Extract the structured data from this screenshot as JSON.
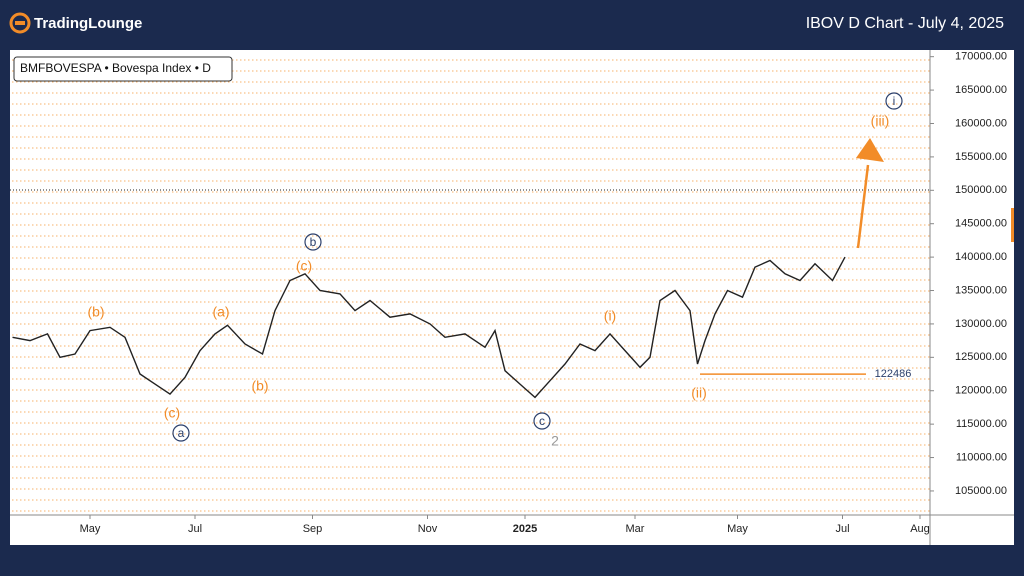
{
  "header": {
    "logo": "TradingLounge",
    "title": "IBOV D Chart - July 4, 2025"
  },
  "chart_data": {
    "type": "line",
    "legend_label": "BMFBOVESPA • Bovespa Index • D",
    "series": [
      {
        "name": "IBOV",
        "color": "#222222",
        "x": [
          1,
          8,
          15,
          20,
          26,
          32,
          40,
          46,
          52,
          58,
          64,
          70,
          76,
          82,
          87,
          94,
          101,
          106,
          112,
          118,
          124,
          132,
          138,
          144,
          152,
          160,
          168,
          174,
          182,
          190,
          194,
          198,
          204,
          210,
          216,
          222,
          228,
          234,
          240,
          246,
          252,
          256,
          260,
          266,
          272,
          275,
          278,
          282,
          287,
          293,
          298,
          304,
          310,
          316,
          322,
          329,
          334
        ],
        "values": [
          128000,
          127500,
          128500,
          125000,
          125500,
          129000,
          129500,
          128000,
          122500,
          121000,
          119500,
          122000,
          126000,
          128500,
          129800,
          127000,
          125500,
          132000,
          136500,
          137500,
          135000,
          134500,
          132000,
          133500,
          131000,
          131500,
          130000,
          128000,
          128500,
          126500,
          129000,
          123000,
          121000,
          119000,
          121500,
          124000,
          127000,
          126000,
          128500,
          126000,
          123500,
          125000,
          133500,
          135000,
          132000,
          124000,
          127500,
          131500,
          135000,
          134000,
          138500,
          139500,
          137500,
          136500,
          139000,
          136500,
          140000
        ]
      }
    ],
    "xlim": [
      0,
      368
    ],
    "xticks": [
      {
        "value": 32,
        "label": "May"
      },
      {
        "value": 74,
        "label": "Jul"
      },
      {
        "value": 121,
        "label": "Sep"
      },
      {
        "value": 167,
        "label": "Nov"
      },
      {
        "value": 206,
        "label": "2025"
      },
      {
        "value": 250,
        "label": "Mar"
      },
      {
        "value": 291,
        "label": "May"
      },
      {
        "value": 333,
        "label": "Jul"
      },
      {
        "value": 364,
        "label": "Aug"
      }
    ],
    "ylim": [
      101400,
      171000
    ],
    "yticks": [
      {
        "value": 105000,
        "label": "105000.00"
      },
      {
        "value": 110000,
        "label": "110000.00"
      },
      {
        "value": 115000,
        "label": "115000.00"
      },
      {
        "value": 120000,
        "label": "120000.00"
      },
      {
        "value": 125000,
        "label": "125000.00"
      },
      {
        "value": 130000,
        "label": "130000.00"
      },
      {
        "value": 135000,
        "label": "135000.00"
      },
      {
        "value": 140000,
        "label": "140000.00"
      },
      {
        "value": 145000,
        "label": "145000.00"
      },
      {
        "value": 150000,
        "label": "150000.00"
      },
      {
        "value": 155000,
        "label": "155000.00"
      },
      {
        "value": 160000,
        "label": "160000.00"
      },
      {
        "value": 165000,
        "label": "165000.00"
      },
      {
        "value": 170000,
        "label": "170000.00"
      }
    ],
    "level": 122486,
    "annotations": [
      "(b)",
      "(a)",
      "(c)",
      "(b)",
      "(c)",
      "a",
      "b",
      "c",
      "2",
      "(i)",
      "(ii)",
      "(iii)",
      "i"
    ]
  }
}
